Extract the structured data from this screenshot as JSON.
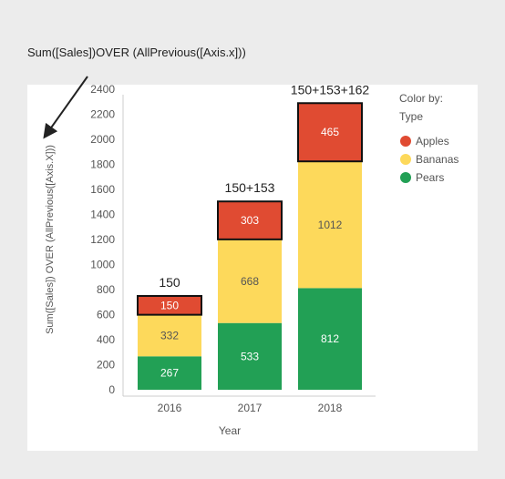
{
  "annotation": {
    "text": "Sum([Sales])OVER (AllPrevious([Axis.x]))"
  },
  "chart_data": {
    "type": "bar",
    "stacked": true,
    "categories": [
      "2016",
      "2017",
      "2018"
    ],
    "series": [
      {
        "name": "Pears",
        "values": [
          267,
          533,
          812
        ],
        "color": "#22a055"
      },
      {
        "name": "Bananas",
        "values": [
          332,
          668,
          1012
        ],
        "color": "#fdd95b"
      },
      {
        "name": "Apples",
        "values": [
          150,
          303,
          465
        ],
        "color": "#e04b32"
      }
    ],
    "top_labels": [
      "150",
      "150+153",
      "150+153+162"
    ],
    "highlighted_series": "Apples",
    "xlabel": "Year",
    "ylabel": "Sum([Sales]) OVER (AllPrevious([Axis.X]))",
    "ylim": [
      0,
      2400
    ],
    "yticks": [
      0,
      200,
      400,
      600,
      800,
      1000,
      1200,
      1400,
      1600,
      1800,
      2000,
      2200,
      2400
    ],
    "grid": false,
    "legend": {
      "title_line1": "Color by:",
      "title_line2": "Type",
      "placement": "right",
      "items": [
        "Apples",
        "Bananas",
        "Pears"
      ]
    }
  }
}
